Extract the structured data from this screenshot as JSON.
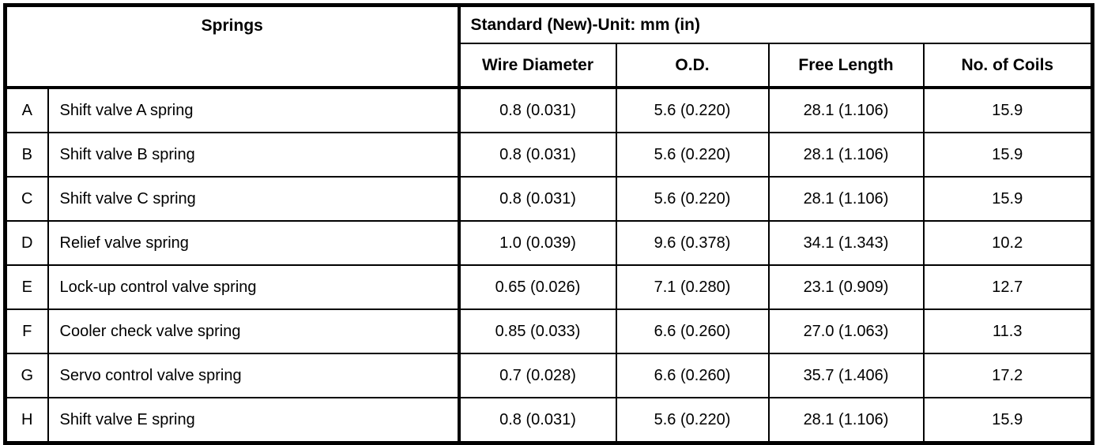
{
  "page": {
    "background_color": "#ffffff",
    "text_color": "#000000",
    "border_color": "#000000"
  },
  "table": {
    "title_left": "Springs",
    "title_right": "Standard (New)-Unit: mm (in)",
    "columns": [
      "Wire Diameter",
      "O.D.",
      "Free Length",
      "No. of Coils"
    ],
    "rows": [
      {
        "id": "A",
        "name": "Shift valve A spring",
        "wire_diameter": "0.8 (0.031)",
        "od": "5.6 (0.220)",
        "free_length": "28.1 (1.106)",
        "no_of_coils": "15.9"
      },
      {
        "id": "B",
        "name": "Shift valve B spring",
        "wire_diameter": "0.8 (0.031)",
        "od": "5.6 (0.220)",
        "free_length": "28.1 (1.106)",
        "no_of_coils": "15.9"
      },
      {
        "id": "C",
        "name": "Shift valve C spring",
        "wire_diameter": "0.8 (0.031)",
        "od": "5.6 (0.220)",
        "free_length": "28.1 (1.106)",
        "no_of_coils": "15.9"
      },
      {
        "id": "D",
        "name": "Relief valve spring",
        "wire_diameter": "1.0 (0.039)",
        "od": "9.6 (0.378)",
        "free_length": "34.1 (1.343)",
        "no_of_coils": "10.2"
      },
      {
        "id": "E",
        "name": "Lock-up control valve spring",
        "wire_diameter": "0.65 (0.026)",
        "od": "7.1 (0.280)",
        "free_length": "23.1 (0.909)",
        "no_of_coils": "12.7"
      },
      {
        "id": "F",
        "name": "Cooler check valve spring",
        "wire_diameter": "0.85 (0.033)",
        "od": "6.6 (0.260)",
        "free_length": "27.0 (1.063)",
        "no_of_coils": "11.3"
      },
      {
        "id": "G",
        "name": "Servo control valve spring",
        "wire_diameter": "0.7 (0.028)",
        "od": "6.6 (0.260)",
        "free_length": "35.7 (1.406)",
        "no_of_coils": "17.2"
      },
      {
        "id": "H",
        "name": "Shift valve E spring",
        "wire_diameter": "0.8 (0.031)",
        "od": "5.6 (0.220)",
        "free_length": "28.1 (1.106)",
        "no_of_coils": "15.9"
      }
    ]
  }
}
